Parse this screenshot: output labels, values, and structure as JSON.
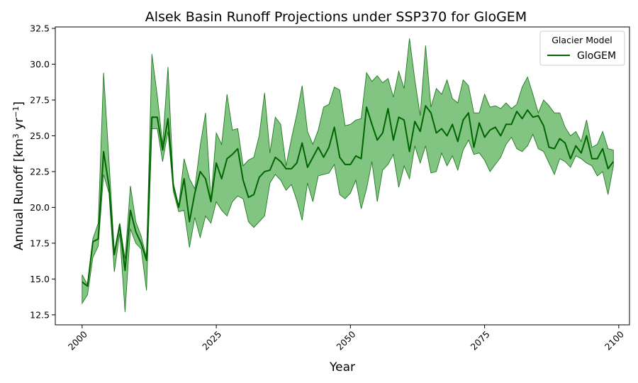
{
  "chart_data": {
    "type": "line",
    "title": "Alsek Basin Runoff Projections under SSP370 for GloGEM",
    "xlabel": "Year",
    "ylabel_main": "Annual Runoff [km",
    "ylabel_exp1": "3",
    "ylabel_mid": " yr",
    "ylabel_exp2": "−1",
    "ylabel_end": "]",
    "xlim": [
      1995,
      2102
    ],
    "ylim": [
      11.8,
      32.6
    ],
    "xticks": [
      2000,
      2025,
      2050,
      2075,
      2100
    ],
    "xtick_labels": [
      "2000",
      "2025",
      "2050",
      "2075",
      "2100"
    ],
    "yticks": [
      12.5,
      15.0,
      17.5,
      20.0,
      22.5,
      25.0,
      27.5,
      30.0,
      32.5
    ],
    "ytick_labels": [
      "12.5",
      "15.0",
      "17.5",
      "20.0",
      "22.5",
      "25.0",
      "27.5",
      "30.0",
      "32.5"
    ],
    "legend": {
      "title": "Glacier Model",
      "placement": "top-right"
    },
    "colors": {
      "line": "#006400",
      "band_fill": "#2e9e2e",
      "band_edge": "#1f7a1f"
    },
    "series": [
      {
        "name": "GloGEM",
        "x": [
          2000,
          2001,
          2002,
          2003,
          2004,
          2005,
          2006,
          2007,
          2008,
          2009,
          2010,
          2011,
          2012,
          2013,
          2014,
          2015,
          2016,
          2017,
          2018,
          2019,
          2020,
          2021,
          2022,
          2023,
          2024,
          2025,
          2026,
          2027,
          2028,
          2029,
          2030,
          2031,
          2032,
          2033,
          2034,
          2035,
          2036,
          2037,
          2038,
          2039,
          2040,
          2041,
          2042,
          2043,
          2044,
          2045,
          2046,
          2047,
          2048,
          2049,
          2050,
          2051,
          2052,
          2053,
          2054,
          2055,
          2056,
          2057,
          2058,
          2059,
          2060,
          2061,
          2062,
          2063,
          2064,
          2065,
          2066,
          2067,
          2068,
          2069,
          2070,
          2071,
          2072,
          2073,
          2074,
          2075,
          2076,
          2077,
          2078,
          2079,
          2080,
          2081,
          2082,
          2083,
          2084,
          2085,
          2086,
          2087,
          2088,
          2089,
          2090,
          2091,
          2092,
          2093,
          2094,
          2095,
          2096,
          2097,
          2098,
          2099
        ],
        "mean": [
          14.8,
          14.5,
          17.6,
          17.8,
          23.9,
          21.5,
          16.7,
          18.8,
          15.6,
          19.8,
          18.3,
          17.5,
          16.3,
          26.3,
          26.3,
          24.0,
          26.2,
          21.5,
          20.0,
          22.0,
          19.0,
          21.0,
          22.5,
          22.0,
          20.4,
          23.1,
          22.0,
          23.4,
          23.7,
          24.1,
          21.9,
          20.7,
          20.9,
          22.1,
          22.5,
          22.6,
          23.5,
          23.2,
          22.7,
          22.7,
          23.1,
          24.5,
          22.8,
          23.5,
          24.2,
          23.5,
          24.2,
          25.6,
          23.5,
          23.0,
          23.0,
          23.6,
          23.4,
          27.0,
          25.8,
          24.7,
          25.2,
          26.9,
          24.7,
          26.3,
          26.1,
          23.9,
          26.0,
          25.3,
          27.1,
          26.6,
          25.2,
          25.5,
          25.0,
          25.8,
          24.6,
          26.1,
          26.6,
          24.2,
          25.9,
          24.9,
          25.4,
          25.6,
          25.0,
          25.8,
          25.8,
          26.7,
          26.2,
          26.8,
          26.3,
          26.4,
          25.7,
          24.2,
          24.1,
          24.8,
          24.5,
          23.4,
          24.3,
          23.8,
          25.0,
          23.4,
          23.4,
          24.1,
          22.7,
          23.2
        ],
        "lower": [
          13.3,
          13.9,
          16.5,
          17.3,
          22.3,
          21.0,
          15.5,
          18.2,
          12.7,
          18.5,
          17.5,
          17.1,
          14.2,
          25.5,
          25.5,
          23.2,
          25.3,
          21.1,
          19.7,
          19.8,
          17.2,
          19.3,
          17.9,
          19.4,
          18.9,
          20.4,
          19.8,
          19.4,
          20.4,
          20.8,
          20.6,
          19.0,
          18.6,
          19.0,
          19.4,
          21.7,
          22.3,
          21.9,
          21.2,
          21.6,
          20.5,
          19.1,
          21.7,
          20.4,
          22.2,
          22.3,
          22.4,
          23.0,
          20.9,
          20.6,
          21.0,
          21.9,
          19.9,
          21.3,
          23.2,
          20.4,
          22.6,
          23.0,
          23.7,
          21.4,
          22.9,
          22.0,
          24.3,
          23.1,
          24.3,
          22.4,
          22.5,
          23.8,
          22.9,
          23.6,
          22.6,
          24.0,
          24.7,
          23.7,
          23.8,
          23.3,
          22.5,
          23.0,
          23.5,
          24.4,
          24.9,
          24.1,
          23.9,
          24.3,
          25.1,
          24.1,
          23.9,
          23.1,
          22.3,
          23.4,
          23.2,
          22.8,
          23.6,
          23.4,
          23.1,
          22.9,
          22.2,
          22.5,
          20.9,
          22.9
        ],
        "upper": [
          15.3,
          14.6,
          17.8,
          18.9,
          29.4,
          23.3,
          16.9,
          18.9,
          16.4,
          21.5,
          19.0,
          18.0,
          16.5,
          30.7,
          27.8,
          24.4,
          29.8,
          21.7,
          20.1,
          23.4,
          22.0,
          21.3,
          24.3,
          26.6,
          20.5,
          25.2,
          24.4,
          27.9,
          25.4,
          25.5,
          22.9,
          23.3,
          23.5,
          25.0,
          28.0,
          23.8,
          26.3,
          25.8,
          22.9,
          24.8,
          26.5,
          28.5,
          25.3,
          24.4,
          25.4,
          27.0,
          27.2,
          28.4,
          28.2,
          25.7,
          25.8,
          26.1,
          26.2,
          29.4,
          28.8,
          29.2,
          28.7,
          29.0,
          27.7,
          29.5,
          28.3,
          31.8,
          28.9,
          26.4,
          31.3,
          27.0,
          28.3,
          27.9,
          28.9,
          27.6,
          27.3,
          28.9,
          28.5,
          26.6,
          26.6,
          27.9,
          27.0,
          27.1,
          26.9,
          27.3,
          26.9,
          27.2,
          28.4,
          29.1,
          27.9,
          26.6,
          27.5,
          27.1,
          26.6,
          26.6,
          25.6,
          25.0,
          25.3,
          24.6,
          26.1,
          24.2,
          24.4,
          25.3,
          24.1,
          24.0
        ]
      }
    ]
  }
}
